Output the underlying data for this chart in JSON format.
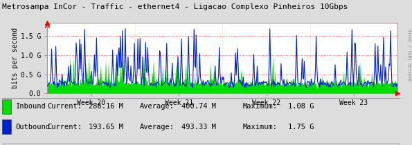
{
  "title": "Metrosampa InCor - Traffic - ethernet4 - Ligacao Complexo Pinheiros 10Gbps",
  "ylabel": "bits per second",
  "yticks": [
    0.0,
    0.5,
    1.0,
    1.5
  ],
  "ytick_labels": [
    "0.0",
    "0.5 G",
    "1.0 G",
    "1.5 G"
  ],
  "ylim": [
    0,
    1.85
  ],
  "week_labels": [
    "Week 20",
    "Week 21",
    "Week 22",
    "Week 23"
  ],
  "bg_color": "#dddddd",
  "plot_bg_color": "#ffffff",
  "grid_color": "#cccccc",
  "inbound_color": "#00dd00",
  "outbound_color": "#0022cc",
  "border_color": "#999999",
  "title_color": "#000000",
  "legend_inbound_label": "Inbound",
  "legend_outbound_label": "Outbound",
  "inbound_current": "286.16 M",
  "inbound_average": "400.74 M",
  "inbound_maximum": "1.08 G",
  "outbound_current": "193.65 M",
  "outbound_average": "493.33 M",
  "outbound_maximum": "1.75 G",
  "right_label": "RTOOL / TOBI OETIKER",
  "n_points": 500,
  "seed": 7
}
